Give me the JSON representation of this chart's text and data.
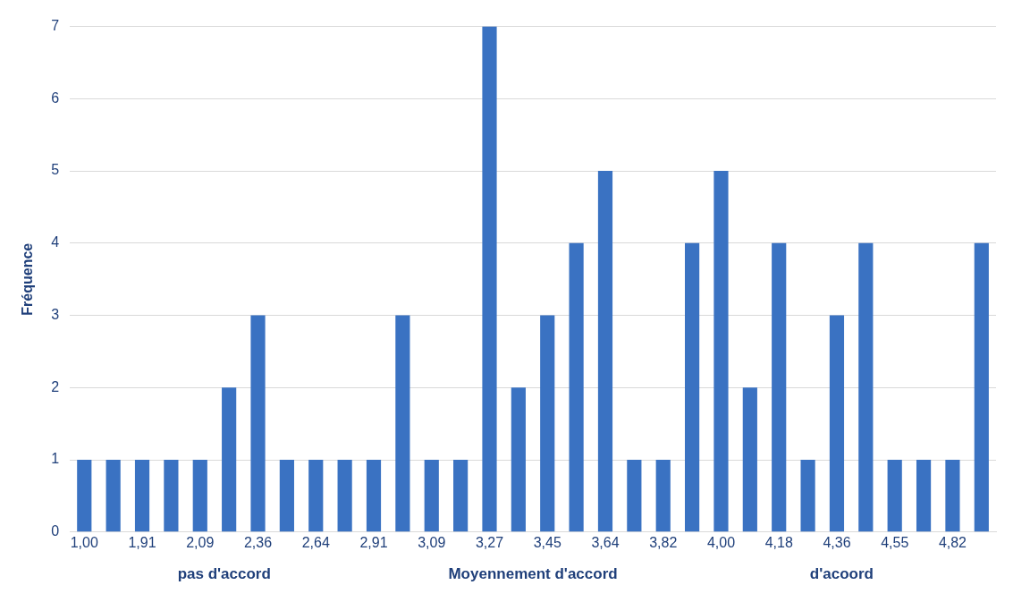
{
  "chart_data": {
    "type": "bar",
    "ylabel": "Fréquence",
    "categories": [
      "1,00",
      null,
      "1,91",
      null,
      "2,09",
      null,
      "2,36",
      null,
      "2,64",
      null,
      "2,91",
      null,
      "3,09",
      null,
      "3,27",
      null,
      "3,45",
      null,
      "3,64",
      null,
      "3,82",
      null,
      "4,00",
      null,
      "4,18",
      null,
      "4,36",
      null,
      "4,55",
      null,
      "4,82",
      null
    ],
    "values": [
      1,
      1,
      1,
      1,
      1,
      2,
      3,
      1,
      1,
      1,
      1,
      3,
      1,
      1,
      7,
      2,
      3,
      4,
      5,
      1,
      1,
      4,
      5,
      2,
      4,
      1,
      3,
      4,
      1,
      1,
      1,
      4
    ],
    "color": "#3a72c2",
    "ylim": [
      0,
      7
    ],
    "yticks": [
      0,
      1,
      2,
      3,
      4,
      5,
      6,
      7
    ],
    "grid": "y",
    "annotations": [
      "pas d'accord",
      "Moyennement d'accord",
      "d'acoord"
    ]
  }
}
